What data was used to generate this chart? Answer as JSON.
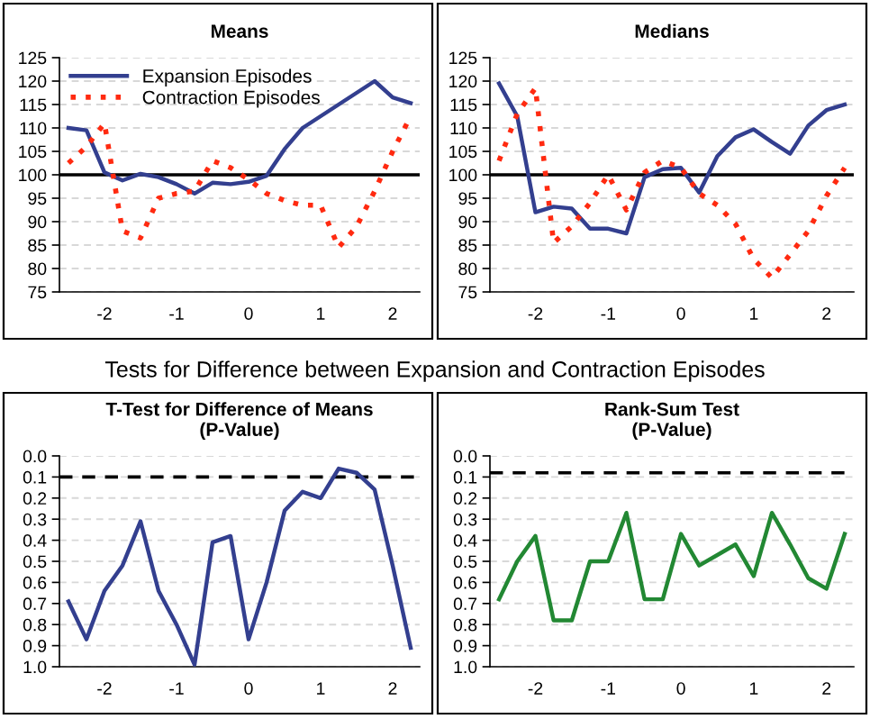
{
  "chart_data": [
    {
      "type": "line",
      "title": "Means",
      "categories": [
        null,
        null,
        "-2",
        null,
        null,
        null,
        "-1",
        null,
        null,
        null,
        "0",
        null,
        null,
        null,
        "1",
        null,
        null,
        null,
        "2",
        null
      ],
      "series": [
        {
          "name": "Expansion Episodes",
          "color": "#333f8f",
          "line_style": "solid",
          "values": [
            110,
            109.5,
            100.5,
            98.8,
            100.2,
            99.5,
            98,
            96,
            98.3,
            98,
            98.5,
            99.8,
            105.5,
            110,
            112.5,
            115,
            117.5,
            120,
            116.5,
            115.3
          ]
        },
        {
          "name": "Contraction Episodes",
          "color": "#ff2a10",
          "line_style": "dotted",
          "values": [
            102.5,
            106,
            111,
            88,
            86.5,
            95,
            96,
            96.5,
            103,
            101.5,
            99,
            96,
            94.5,
            93.5,
            93.5,
            84.5,
            89,
            96.5,
            105,
            112.5
          ]
        }
      ],
      "ylim": [
        75,
        125
      ],
      "yticks": [
        75,
        80,
        85,
        90,
        95,
        100,
        105,
        110,
        115,
        120,
        125
      ],
      "grid": "y",
      "legend": "top left",
      "ref_lines": [
        {
          "axis": "y",
          "value": 100,
          "color": "#000000",
          "line_style": "solid"
        }
      ]
    },
    {
      "type": "line",
      "title": "Medians",
      "categories": [
        null,
        null,
        "-2",
        null,
        null,
        null,
        "-1",
        null,
        null,
        null,
        "0",
        null,
        null,
        null,
        "1",
        null,
        null,
        null,
        "2",
        null
      ],
      "series": [
        {
          "color": "#333f8f",
          "line_style": "solid",
          "values": [
            119.5,
            112.5,
            92,
            93.2,
            92.8,
            88.5,
            88.5,
            87.5,
            99.5,
            101.2,
            101.5,
            96.2,
            104,
            108,
            109.7,
            107,
            104.5,
            110.5,
            113.8,
            115
          ]
        },
        {
          "color": "#ff2a10",
          "line_style": "dotted",
          "values": [
            103,
            113,
            118.5,
            85.5,
            89,
            94,
            100,
            92.5,
            100.5,
            103,
            101.5,
            96,
            93.5,
            89.5,
            82,
            78,
            83,
            88,
            95.5,
            101.5
          ]
        }
      ],
      "ylim": [
        75,
        125
      ],
      "yticks": [
        75,
        80,
        85,
        90,
        95,
        100,
        105,
        110,
        115,
        120,
        125
      ],
      "grid": "y",
      "ref_lines": [
        {
          "axis": "y",
          "value": 100,
          "color": "#000000",
          "line_style": "solid"
        }
      ]
    },
    {
      "type": "line",
      "title": "T-Test for Difference of Means\n(P-Value)",
      "annotations": [
        "Tests for Difference between Expansion and Contraction Episodes"
      ],
      "categories": [
        null,
        null,
        "-2",
        null,
        null,
        null,
        "-1",
        null,
        null,
        null,
        "0",
        null,
        null,
        null,
        "1",
        null,
        null,
        null,
        "2",
        null
      ],
      "series": [
        {
          "color": "#333f8f",
          "line_style": "solid",
          "values": [
            0.69,
            0.87,
            0.64,
            0.52,
            0.31,
            0.64,
            0.8,
            0.99,
            0.41,
            0.38,
            0.87,
            0.6,
            0.26,
            0.17,
            0.2,
            0.06,
            0.08,
            0.16,
            0.52,
            0.91
          ]
        }
      ],
      "ylim": [
        1.0,
        0.0
      ],
      "yticks": [
        {
          "value": 0,
          "label": "0.0"
        },
        {
          "value": 0.1,
          "label": "0.1"
        },
        {
          "value": 0.2,
          "label": "0.2"
        },
        {
          "value": 0.3,
          "label": "0.3"
        },
        {
          "value": 0.4,
          "label": "0.4"
        },
        {
          "value": 0.5,
          "label": "0.5"
        },
        {
          "value": 0.6,
          "label": "0.6"
        },
        {
          "value": 0.7,
          "label": "0.7"
        },
        {
          "value": 0.8,
          "label": "0.8"
        },
        {
          "value": 0.9,
          "label": "0.9"
        },
        {
          "value": 1,
          "label": "1.0"
        }
      ],
      "grid": "y",
      "ref_lines": [
        {
          "axis": "y",
          "value": 0.1,
          "color": "#000000",
          "line_style": "dashed"
        }
      ]
    },
    {
      "type": "line",
      "title": "Rank-Sum Test\n(P-Value)",
      "categories": [
        null,
        null,
        "-2",
        null,
        null,
        null,
        "-1",
        null,
        null,
        null,
        "0",
        null,
        null,
        null,
        "1",
        null,
        null,
        null,
        "2",
        null
      ],
      "series": [
        {
          "color": "#228833",
          "line_style": "solid",
          "values": [
            0.68,
            0.5,
            0.38,
            0.78,
            0.78,
            0.5,
            0.5,
            0.27,
            0.68,
            0.68,
            0.37,
            0.52,
            0.47,
            0.42,
            0.57,
            0.27,
            0.42,
            0.58,
            0.63,
            0.37
          ]
        }
      ],
      "ylim": [
        1.0,
        0.0
      ],
      "yticks": [
        {
          "value": 0,
          "label": "0.0"
        },
        {
          "value": 0.1,
          "label": "0.1"
        },
        {
          "value": 0.2,
          "label": "0.2"
        },
        {
          "value": 0.3,
          "label": "0.3"
        },
        {
          "value": 0.4,
          "label": "0.4"
        },
        {
          "value": 0.5,
          "label": "0.5"
        },
        {
          "value": 0.6,
          "label": "0.6"
        },
        {
          "value": 0.7,
          "label": "0.7"
        },
        {
          "value": 0.8,
          "label": "0.8"
        },
        {
          "value": 0.9,
          "label": "0.9"
        },
        {
          "value": 1,
          "label": "1.0"
        }
      ],
      "grid": "y",
      "ref_lines": [
        {
          "axis": "y",
          "value": 0.08,
          "color": "#000000",
          "line_style": "dashed"
        }
      ]
    }
  ]
}
